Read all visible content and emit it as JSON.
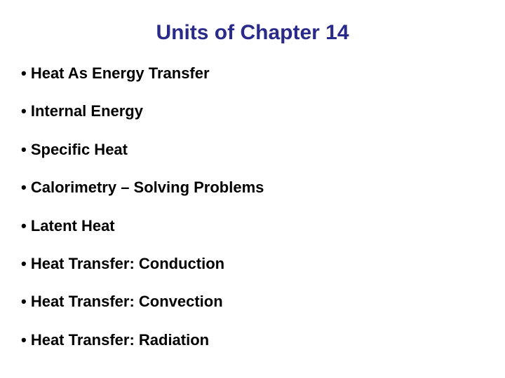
{
  "slide": {
    "title": "Units of Chapter 14",
    "title_color": "#2a2a8a",
    "title_fontsize": 30,
    "item_fontsize": 22,
    "item_color": "#000000",
    "background_color": "#ffffff",
    "bullet_char": "•",
    "items": [
      {
        "text": "Heat As Energy Transfer"
      },
      {
        "text": "Internal Energy"
      },
      {
        "text": "Specific Heat"
      },
      {
        "text": "Calorimetry – Solving Problems"
      },
      {
        "text": "Latent Heat"
      },
      {
        "text": "Heat Transfer: Conduction"
      },
      {
        "text": "Heat Transfer: Convection"
      },
      {
        "text": "Heat Transfer: Radiation"
      }
    ]
  }
}
